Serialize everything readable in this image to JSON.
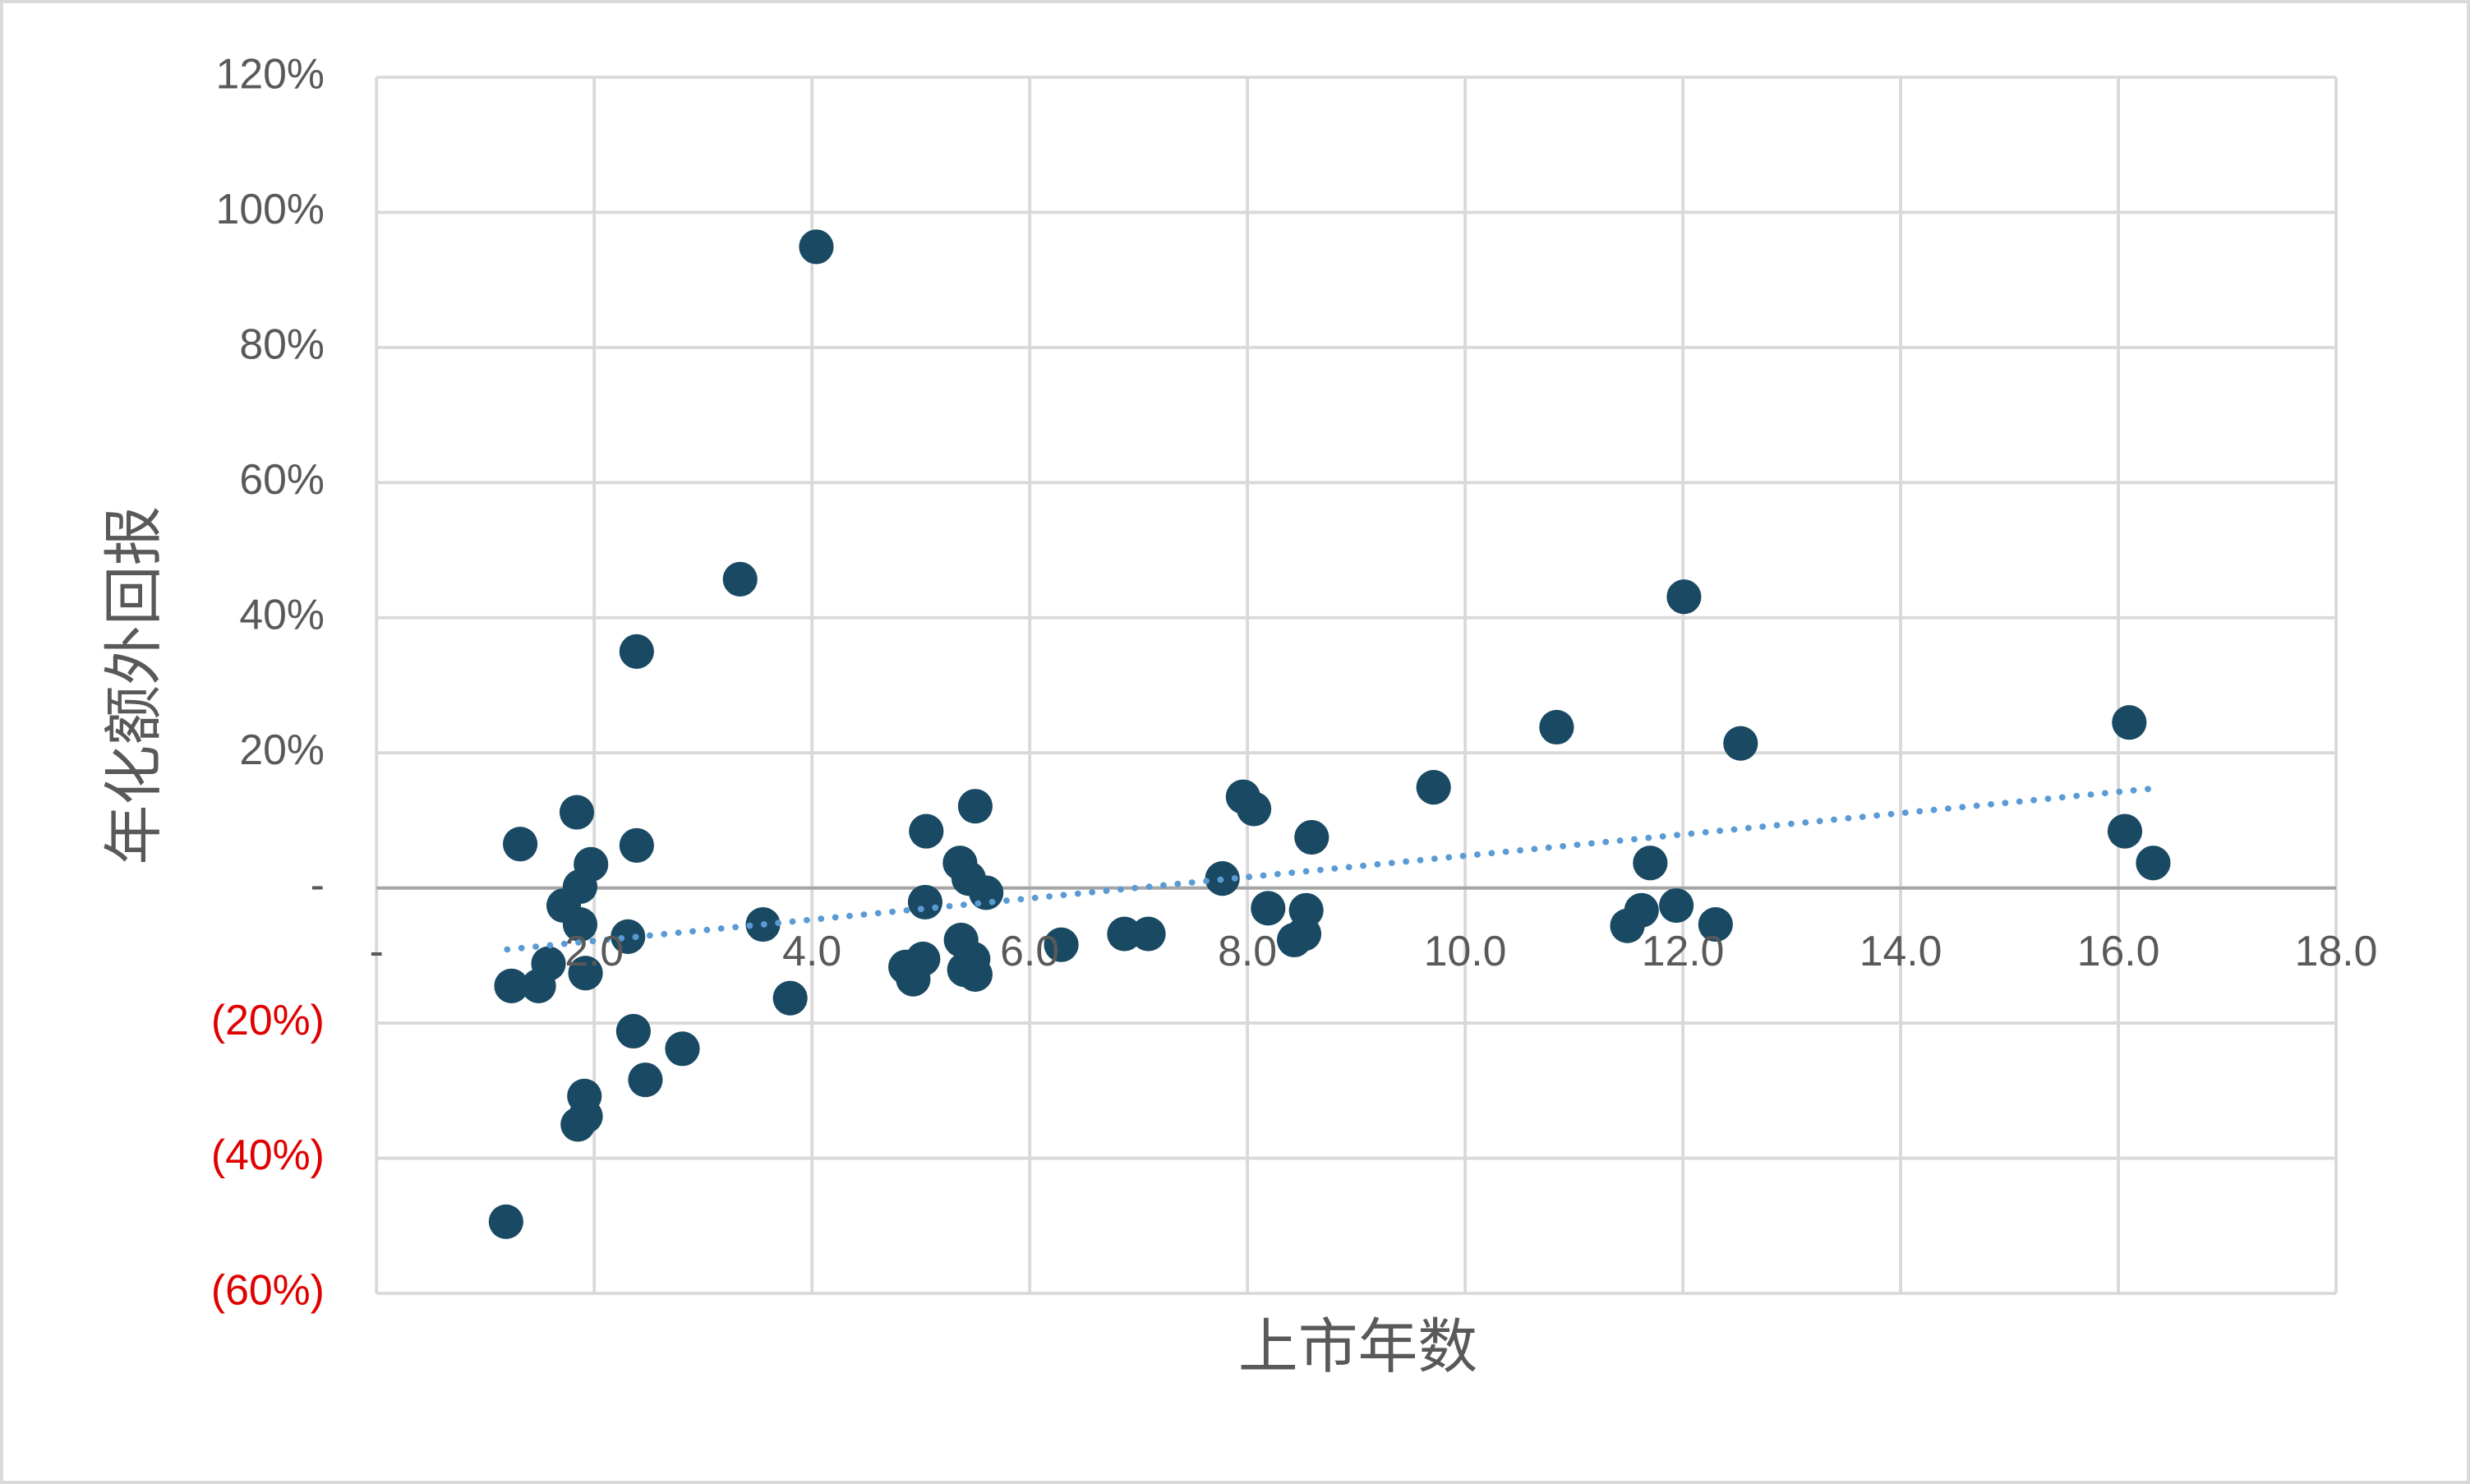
{
  "chart_data": {
    "type": "scatter",
    "x_label": "上市年数",
    "y_label": "年化额外回报",
    "xlim": [
      0,
      18
    ],
    "xticks": [
      {
        "value": 0,
        "label": "-"
      },
      {
        "value": 2,
        "label": "2.0"
      },
      {
        "value": 4,
        "label": "4.0"
      },
      {
        "value": 6,
        "label": "6.0"
      },
      {
        "value": 8,
        "label": "8.0"
      },
      {
        "value": 10,
        "label": "10.0"
      },
      {
        "value": 12,
        "label": "12.0"
      },
      {
        "value": 14,
        "label": "14.0"
      },
      {
        "value": 16,
        "label": "16.0"
      },
      {
        "value": 18,
        "label": "18.0"
      }
    ],
    "ylim": [
      -60,
      120
    ],
    "yticks": [
      {
        "value": -60,
        "label": "(60%)"
      },
      {
        "value": -40,
        "label": "(40%)"
      },
      {
        "value": -20,
        "label": "(20%)"
      },
      {
        "value": 0,
        "label": "-"
      },
      {
        "value": 20,
        "label": "20%"
      },
      {
        "value": 40,
        "label": "40%"
      },
      {
        "value": 60,
        "label": "60%"
      },
      {
        "value": 80,
        "label": "80%"
      },
      {
        "value": 100,
        "label": "100%"
      },
      {
        "value": 120,
        "label": "120%"
      }
    ],
    "negative_label_color": "#e00000",
    "grid": true,
    "color": "#1a4a63",
    "x": [
      1.19,
      1.24,
      1.32,
      1.49,
      1.58,
      1.72,
      1.84,
      1.87,
      1.87,
      1.85,
      1.91,
      1.92,
      1.92,
      1.97,
      2.31,
      2.36,
      2.39,
      2.39,
      2.47,
      2.81,
      3.34,
      3.55,
      3.8,
      4.04,
      4.86,
      4.93,
      5.02,
      5.05,
      5.04,
      5.36,
      5.37,
      5.4,
      5.44,
      5.48,
      5.5,
      5.5,
      5.6,
      6.29,
      6.87,
      7.09,
      7.77,
      7.96,
      8.06,
      8.19,
      8.43,
      8.52,
      8.54,
      8.59,
      9.71,
      10.84,
      11.49,
      11.62,
      11.7,
      11.94,
      12.01,
      12.3,
      12.53,
      16.06,
      16.1,
      16.32
    ],
    "values": [
      -49.4,
      -14.5,
      6.5,
      -14.5,
      -11.2,
      -2.6,
      11.2,
      0.2,
      -5.4,
      -35.0,
      -30.8,
      -33.8,
      -12.6,
      3.5,
      -7.2,
      -21.2,
      35.0,
      6.3,
      -28.4,
      -23.8,
      45.7,
      -5.4,
      -16.3,
      94.9,
      -11.7,
      -13.5,
      -10.5,
      8.4,
      -2.1,
      3.7,
      -7.7,
      -12.1,
      1.4,
      -10.5,
      12.1,
      -12.8,
      -0.7,
      -8.4,
      -6.8,
      -6.8,
      1.4,
      13.5,
      11.7,
      -3.0,
      -7.7,
      -6.8,
      -3.3,
      7.5,
      14.9,
      23.8,
      -5.6,
      -3.3,
      3.7,
      -2.6,
      43.1,
      -5.4,
      21.4,
      8.4,
      24.5,
      3.7
    ],
    "trendline": {
      "x": [
        1.2,
        16.3
      ],
      "values": [
        -9.1,
        14.7
      ],
      "color": "#5b9bd5"
    }
  }
}
